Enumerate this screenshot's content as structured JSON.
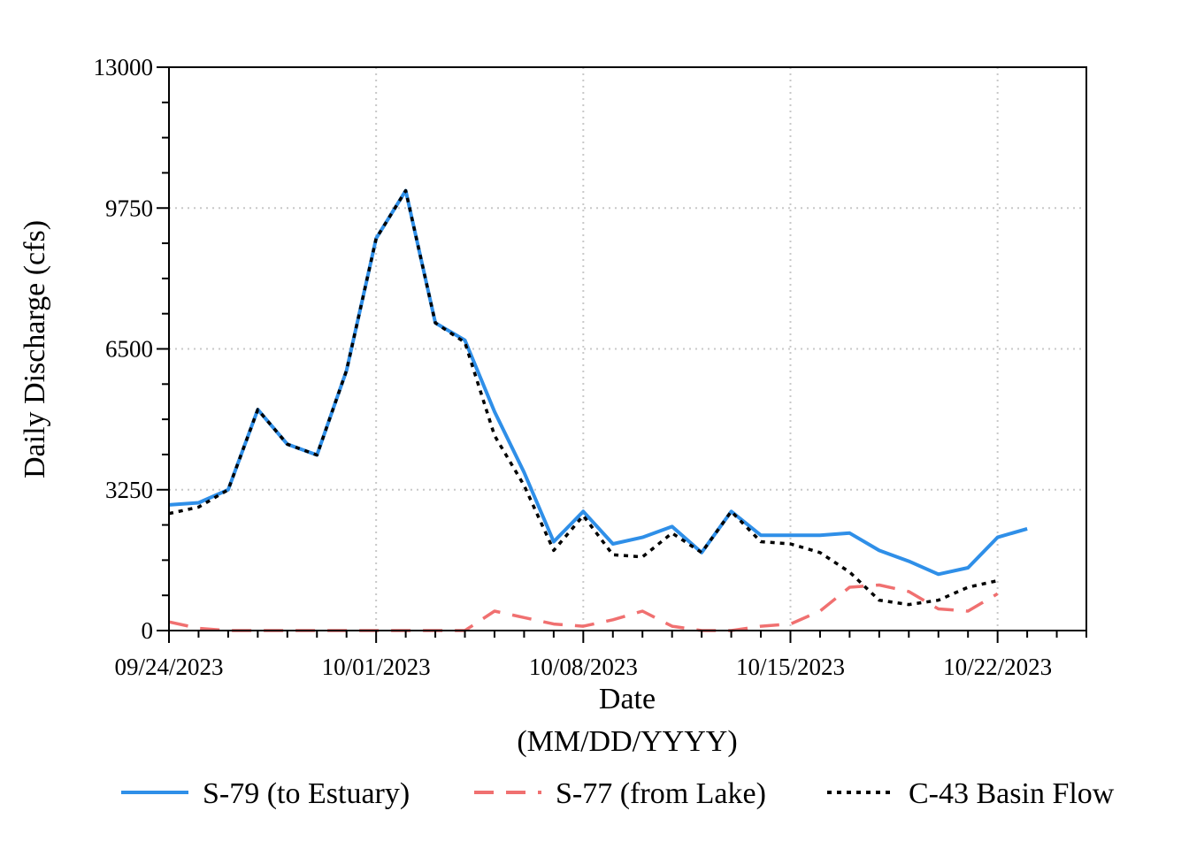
{
  "chart_data": {
    "type": "line",
    "ylabel": "Daily Discharge (cfs)",
    "xlabel": "Date",
    "xlabel_sub": "(MM/DD/YYYY)",
    "x_tick_labels": [
      "09/24/2023",
      "10/01/2023",
      "10/08/2023",
      "10/15/2023",
      "10/22/2023"
    ],
    "y_ticks": [
      0,
      3250,
      6500,
      9750,
      13000
    ],
    "ylim": [
      0,
      13000
    ],
    "xlim": [
      "09/24/2023",
      "10/25/2023"
    ],
    "grid": true,
    "legend_position": "bottom",
    "series": [
      {
        "name": "S-79 (to Estuary)",
        "color": "#2f8fe8",
        "style": "solid",
        "start_date": "09/24/2023",
        "values": [
          2900,
          2950,
          3250,
          5100,
          4300,
          4050,
          6000,
          9050,
          10150,
          7100,
          6700,
          5050,
          3650,
          2050,
          2750,
          2000,
          2150,
          2400,
          1800,
          2750,
          2200,
          2200,
          2200,
          2250,
          1850,
          1600,
          1300,
          1450,
          2150,
          2350
        ]
      },
      {
        "name": "S-77 (from Lake)",
        "color": "#f07070",
        "style": "dashed",
        "start_date": "09/24/2023",
        "values": [
          200,
          50,
          0,
          0,
          0,
          0,
          0,
          0,
          0,
          0,
          0,
          450,
          300,
          150,
          100,
          250,
          450,
          100,
          0,
          0,
          100,
          150,
          450,
          1000,
          1050,
          900,
          500,
          450,
          850
        ]
      },
      {
        "name": "C-43 Basin Flow",
        "color": "#000000",
        "style": "dotted",
        "start_date": "09/24/2023",
        "values": [
          2700,
          2850,
          3250,
          5100,
          4300,
          4050,
          6000,
          9050,
          10150,
          7100,
          6650,
          4500,
          3350,
          1850,
          2650,
          1750,
          1700,
          2250,
          1800,
          2750,
          2050,
          2000,
          1800,
          1350,
          700,
          600,
          700,
          1000,
          1150
        ]
      }
    ]
  }
}
